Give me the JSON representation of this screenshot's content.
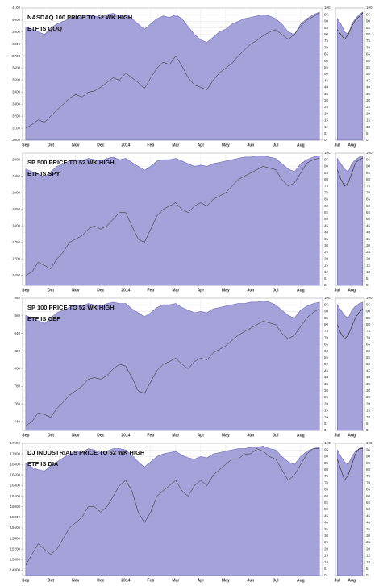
{
  "charts": [
    {
      "type": "area",
      "title": "NASDAQ 100 PRICE TO 52 WK HIGH",
      "subtitle": "ETF IS QQQ",
      "categories": [
        "Sep",
        null,
        null,
        null,
        "Oct",
        null,
        null,
        null,
        "Nov",
        null,
        null,
        null,
        "Dec",
        null,
        null,
        null,
        "2014",
        null,
        null,
        null,
        "Feb",
        null,
        null,
        null,
        "Mar",
        null,
        null,
        null,
        "Apr",
        null,
        null,
        null,
        "May",
        null,
        null,
        null,
        "Jun",
        null,
        null,
        null,
        "Jul",
        null,
        null,
        null,
        "Aug",
        null,
        null,
        null
      ],
      "series": [
        {
          "color": "#9b98d6",
          "values": [
            86,
            84,
            82,
            80,
            85,
            88,
            90,
            92,
            94,
            93,
            95,
            94,
            93,
            95,
            96,
            94,
            95,
            92,
            88,
            84,
            88,
            92,
            94,
            93,
            95,
            92,
            86,
            80,
            76,
            74,
            78,
            82,
            84,
            88,
            90,
            92,
            93,
            94,
            95,
            94,
            92,
            88,
            82,
            80,
            88,
            92,
            95,
            97
          ]
        },
        {
          "color": "#222222",
          "axis": "y2",
          "values": [
            3100,
            3130,
            3170,
            3150,
            3200,
            3250,
            3300,
            3350,
            3380,
            3360,
            3400,
            3410,
            3440,
            3480,
            3520,
            3500,
            3560,
            3520,
            3480,
            3430,
            3520,
            3600,
            3650,
            3630,
            3700,
            3620,
            3520,
            3460,
            3440,
            3420,
            3500,
            3560,
            3600,
            3640,
            3700,
            3750,
            3800,
            3830,
            3870,
            3900,
            3920,
            3880,
            3840,
            3880,
            3950,
            4000,
            4030,
            4060
          ]
        }
      ],
      "ylim": [
        0,
        100
      ],
      "yticks": [
        0,
        5,
        10,
        15,
        20,
        25,
        30,
        35,
        40,
        45,
        50,
        55,
        60,
        65,
        70,
        75,
        80,
        85,
        90,
        95,
        100
      ],
      "y2lim": [
        3000,
        4100
      ],
      "y2ticks": [
        3000,
        3100,
        3200,
        3300,
        3400,
        3500,
        3600,
        3700,
        3800,
        3900,
        4000,
        4100
      ],
      "grid": true
    },
    {
      "type": "area",
      "title": "SP 500 PRICE TO 52 WK HIGH",
      "subtitle": "ETF IS SPY",
      "categories": [
        "Sep",
        null,
        null,
        null,
        "Oct",
        null,
        null,
        null,
        "Nov",
        null,
        null,
        null,
        "Dec",
        null,
        null,
        null,
        "2014",
        null,
        null,
        null,
        "Feb",
        null,
        null,
        null,
        "Mar",
        null,
        null,
        null,
        "Apr",
        null,
        null,
        null,
        "May",
        null,
        null,
        null,
        "Jun",
        null,
        null,
        null,
        "Jul",
        null,
        null,
        null,
        "Aug",
        null,
        null,
        null
      ],
      "series": [
        {
          "color": "#9b98d6",
          "values": [
            88,
            86,
            84,
            82,
            86,
            90,
            92,
            94,
            95,
            94,
            96,
            95,
            94,
            96,
            97,
            95,
            96,
            93,
            90,
            87,
            90,
            94,
            95,
            95,
            96,
            94,
            92,
            90,
            91,
            90,
            92,
            93,
            94,
            95,
            96,
            97,
            97,
            98,
            98,
            97,
            96,
            92,
            88,
            86,
            92,
            95,
            97,
            98
          ]
        },
        {
          "color": "#222222",
          "axis": "y2",
          "values": [
            1650,
            1660,
            1690,
            1680,
            1670,
            1700,
            1720,
            1750,
            1760,
            1770,
            1790,
            1800,
            1790,
            1800,
            1820,
            1840,
            1840,
            1800,
            1760,
            1750,
            1790,
            1830,
            1850,
            1860,
            1870,
            1850,
            1840,
            1860,
            1870,
            1860,
            1880,
            1890,
            1900,
            1920,
            1940,
            1950,
            1960,
            1970,
            1980,
            1975,
            1970,
            1940,
            1920,
            1930,
            1960,
            1990,
            2000,
            2005
          ]
        }
      ],
      "ylim": [
        0,
        100
      ],
      "yticks": [
        0,
        5,
        10,
        15,
        20,
        25,
        30,
        35,
        40,
        45,
        50,
        55,
        60,
        65,
        70,
        75,
        80,
        85,
        90,
        95,
        100
      ],
      "y2lim": [
        1620,
        2020
      ],
      "y2ticks": [
        1650,
        1700,
        1750,
        1800,
        1850,
        1900,
        1950,
        2000
      ],
      "grid": true
    },
    {
      "type": "area",
      "title": "SP 100 PRICE TO 52 WK HIGH",
      "subtitle": "ETF IS OEF",
      "categories": [
        "Sep",
        null,
        null,
        null,
        "Oct",
        null,
        null,
        null,
        "Nov",
        null,
        null,
        null,
        "Dec",
        null,
        null,
        null,
        "2014",
        null,
        null,
        null,
        "Feb",
        null,
        null,
        null,
        "Mar",
        null,
        null,
        null,
        "Apr",
        null,
        null,
        null,
        "May",
        null,
        null,
        null,
        "Jun",
        null,
        null,
        null,
        "Jul",
        null,
        null,
        null,
        "Aug",
        null,
        null,
        null
      ],
      "series": [
        {
          "color": "#9b98d6",
          "values": [
            87,
            85,
            83,
            81,
            85,
            89,
            91,
            93,
            95,
            94,
            96,
            95,
            94,
            96,
            97,
            96,
            96,
            92,
            89,
            86,
            89,
            93,
            95,
            95,
            96,
            93,
            91,
            89,
            90,
            89,
            92,
            93,
            94,
            95,
            96,
            96,
            97,
            97,
            98,
            97,
            95,
            91,
            87,
            85,
            91,
            94,
            96,
            97
          ]
        },
        {
          "color": "#222222",
          "axis": "y2",
          "values": [
            735,
            740,
            750,
            748,
            745,
            755,
            762,
            770,
            775,
            780,
            788,
            790,
            788,
            792,
            800,
            805,
            803,
            790,
            775,
            772,
            785,
            798,
            805,
            808,
            812,
            805,
            800,
            808,
            812,
            810,
            818,
            822,
            826,
            832,
            838,
            842,
            846,
            850,
            854,
            852,
            850,
            840,
            834,
            838,
            848,
            858,
            864,
            868
          ]
        }
      ],
      "ylim": [
        0,
        100
      ],
      "yticks": [
        0,
        5,
        10,
        15,
        20,
        25,
        30,
        35,
        40,
        45,
        50,
        55,
        60,
        65,
        70,
        75,
        80,
        85,
        90,
        95,
        100
      ],
      "y2lim": [
        730,
        880
      ],
      "y2ticks": [
        740,
        760,
        780,
        800,
        820,
        840,
        860,
        880
      ],
      "grid": true
    },
    {
      "type": "area",
      "title": "DJ INDUSTRIALS PRICE TO 52 WK HIGH",
      "subtitle": "ETF IS DIA",
      "categories": [
        "Sep",
        null,
        null,
        null,
        "Oct",
        null,
        null,
        null,
        "Nov",
        null,
        null,
        null,
        "Dec",
        null,
        null,
        null,
        "2014",
        null,
        null,
        null,
        "Feb",
        null,
        null,
        null,
        "Mar",
        null,
        null,
        null,
        "Apr",
        null,
        null,
        null,
        "May",
        null,
        null,
        null,
        "Jun",
        null,
        null,
        null,
        "Jul",
        null,
        null,
        null,
        "Aug",
        null,
        null,
        null
      ],
      "series": [
        {
          "color": "#9b98d6",
          "values": [
            85,
            82,
            80,
            79,
            83,
            86,
            89,
            92,
            94,
            93,
            96,
            95,
            93,
            94,
            96,
            96,
            95,
            91,
            86,
            82,
            86,
            90,
            92,
            93,
            94,
            91,
            89,
            88,
            90,
            89,
            92,
            93,
            94,
            95,
            96,
            96,
            97,
            97,
            98,
            96,
            95,
            90,
            86,
            84,
            90,
            94,
            96,
            97
          ]
        },
        {
          "color": "#222222",
          "axis": "y2",
          "values": [
            14900,
            15100,
            15300,
            15200,
            15100,
            15200,
            15400,
            15600,
            15700,
            15800,
            16000,
            16000,
            15900,
            16000,
            16200,
            16400,
            16500,
            16300,
            15900,
            15700,
            15900,
            16200,
            16300,
            16400,
            16500,
            16300,
            16200,
            16400,
            16500,
            16400,
            16600,
            16700,
            16800,
            16900,
            16900,
            17000,
            17000,
            17100,
            17050,
            16950,
            16900,
            16700,
            16500,
            16600,
            16800,
            17000,
            17100,
            17100
          ]
        }
      ],
      "ylim": [
        0,
        100
      ],
      "yticks": [
        0,
        5,
        10,
        15,
        20,
        25,
        30,
        35,
        40,
        45,
        50,
        55,
        60,
        65,
        70,
        75,
        80,
        85,
        90,
        95,
        100
      ],
      "y2lim": [
        14700,
        17200
      ],
      "y2ticks": [
        14800,
        15000,
        15200,
        15400,
        15600,
        15800,
        16000,
        16200,
        16400,
        16600,
        16800,
        17000,
        17200
      ],
      "grid": true
    }
  ]
}
